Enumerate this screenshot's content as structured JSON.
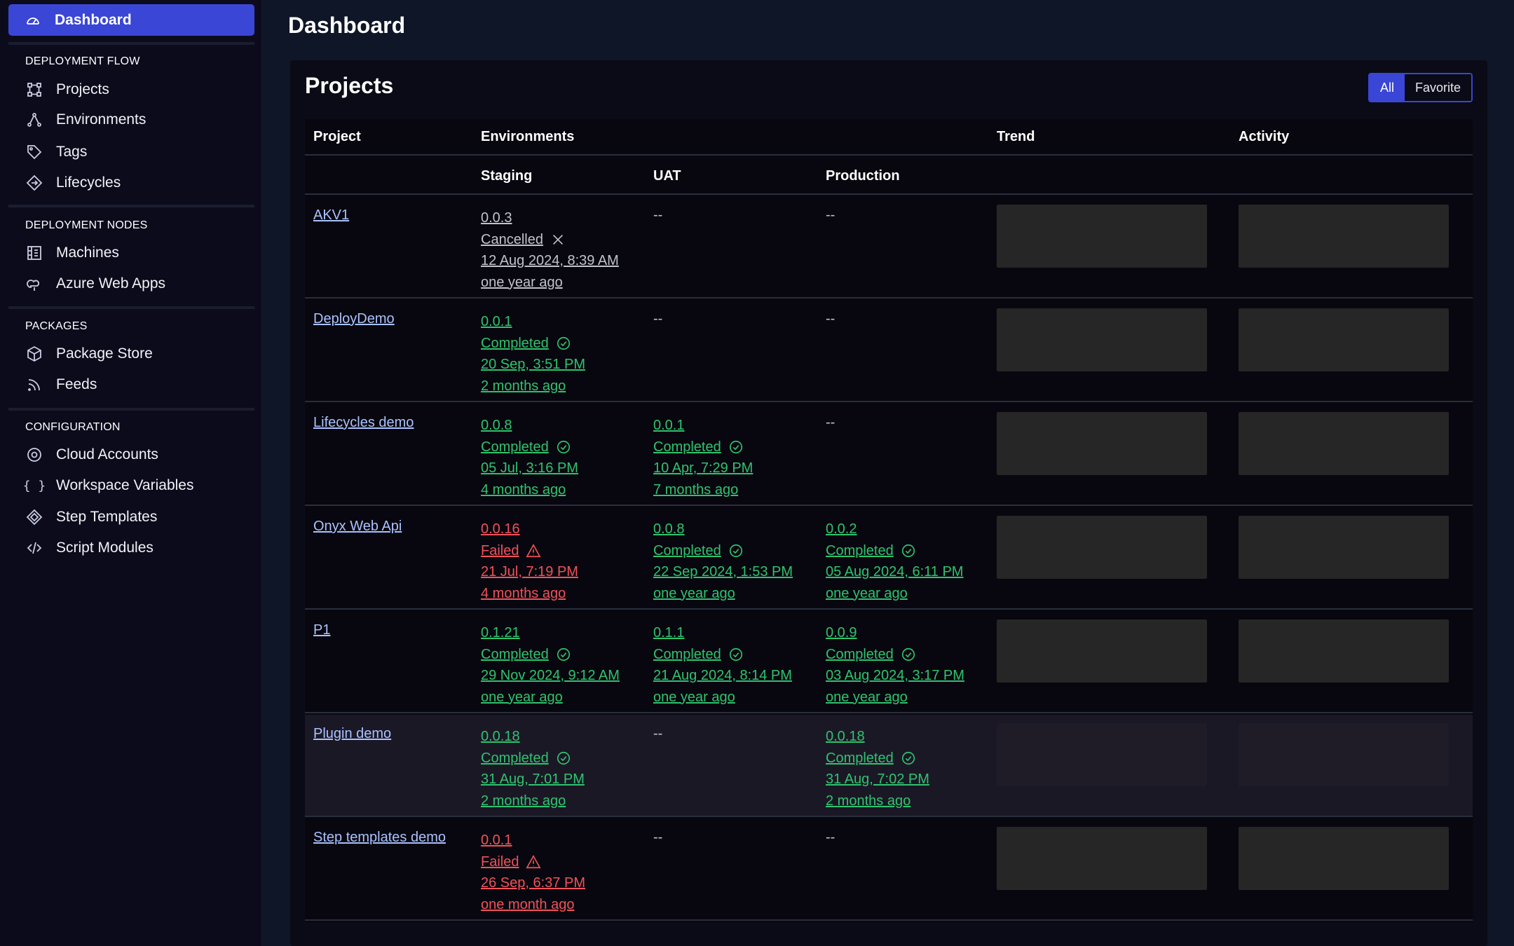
{
  "sidebar": {
    "active": {
      "label": "Dashboard",
      "icon": "gauge-icon"
    },
    "sections": [
      {
        "title": "DEPLOYMENT FLOW",
        "items": [
          {
            "label": "Projects",
            "icon": "projects-icon"
          },
          {
            "label": "Environments",
            "icon": "environments-icon"
          },
          {
            "label": "Tags",
            "icon": "tag-icon"
          },
          {
            "label": "Lifecycles",
            "icon": "lifecycle-icon"
          }
        ]
      },
      {
        "title": "DEPLOYMENT NODES",
        "items": [
          {
            "label": "Machines",
            "icon": "machine-icon"
          },
          {
            "label": "Azure Web Apps",
            "icon": "cloud-icon"
          }
        ]
      },
      {
        "title": "PACKAGES",
        "items": [
          {
            "label": "Package Store",
            "icon": "package-icon"
          },
          {
            "label": "Feeds",
            "icon": "rss-icon"
          }
        ]
      },
      {
        "title": "CONFIGURATION",
        "items": [
          {
            "label": "Cloud Accounts",
            "icon": "account-icon"
          },
          {
            "label": "Workspace Variables",
            "icon": "braces-icon"
          },
          {
            "label": "Step Templates",
            "icon": "step-icon"
          },
          {
            "label": "Script Modules",
            "icon": "code-icon"
          }
        ]
      }
    ]
  },
  "header": {
    "title": "Dashboard"
  },
  "panel": {
    "title": "Projects",
    "filter": {
      "all": "All",
      "favorite": "Favorite",
      "selected": "All"
    }
  },
  "table": {
    "headers": {
      "project": "Project",
      "environments": "Environments",
      "trend": "Trend",
      "activity": "Activity"
    },
    "env_headers": [
      "Staging",
      "UAT",
      "Production"
    ],
    "empty": "--",
    "rows": [
      {
        "project": "AKV1",
        "staging": {
          "version": "0.0.3",
          "status": "Cancelled",
          "kind": "cancelled",
          "date": "12 Aug 2024, 8:39 AM",
          "ago": "one year ago"
        },
        "uat": null,
        "production": null
      },
      {
        "project": "DeployDemo",
        "staging": {
          "version": "0.0.1",
          "status": "Completed",
          "kind": "success",
          "date": "20 Sep, 3:51 PM",
          "ago": "2 months ago"
        },
        "uat": null,
        "production": null
      },
      {
        "project": "Lifecycles demo",
        "staging": {
          "version": "0.0.8",
          "status": "Completed",
          "kind": "success",
          "date": "05 Jul, 3:16 PM",
          "ago": "4 months ago"
        },
        "uat": {
          "version": "0.0.1",
          "status": "Completed",
          "kind": "success",
          "date": "10 Apr, 7:29 PM",
          "ago": "7 months ago"
        },
        "production": null
      },
      {
        "project": "Onyx Web Api",
        "staging": {
          "version": "0.0.16",
          "status": "Failed",
          "kind": "failed",
          "date": "21 Jul, 7:19 PM",
          "ago": "4 months ago"
        },
        "uat": {
          "version": "0.0.8",
          "status": "Completed",
          "kind": "success",
          "date": "22 Sep 2024, 1:53 PM",
          "ago": "one year ago"
        },
        "production": {
          "version": "0.0.2",
          "status": "Completed",
          "kind": "success",
          "date": "05 Aug 2024, 6:11 PM",
          "ago": "one year ago"
        }
      },
      {
        "project": "P1",
        "staging": {
          "version": "0.1.21",
          "status": "Completed",
          "kind": "success",
          "date": "29 Nov 2024, 9:12 AM",
          "ago": "one year ago"
        },
        "uat": {
          "version": "0.1.1",
          "status": "Completed",
          "kind": "success",
          "date": "21 Aug 2024, 8:14 PM",
          "ago": "one year ago"
        },
        "production": {
          "version": "0.0.9",
          "status": "Completed",
          "kind": "success",
          "date": "03 Aug 2024, 3:17 PM",
          "ago": "one year ago"
        }
      },
      {
        "project": "Plugin demo",
        "hover": true,
        "staging": {
          "version": "0.0.18",
          "status": "Completed",
          "kind": "success",
          "date": "31 Aug, 7:01 PM",
          "ago": "2 months ago"
        },
        "uat": null,
        "production": {
          "version": "0.0.18",
          "status": "Completed",
          "kind": "success",
          "date": "31 Aug, 7:02 PM",
          "ago": "2 months ago"
        }
      },
      {
        "project": "Step templates demo",
        "staging": {
          "version": "0.0.1",
          "status": "Failed",
          "kind": "failed",
          "date": "26 Sep, 6:37 PM",
          "ago": "one month ago"
        },
        "uat": null,
        "production": null
      }
    ]
  },
  "colors": {
    "accent": "#3a46d6",
    "success": "#2fc36e",
    "failed": "#f0525a",
    "link": "#a9c2ff"
  }
}
